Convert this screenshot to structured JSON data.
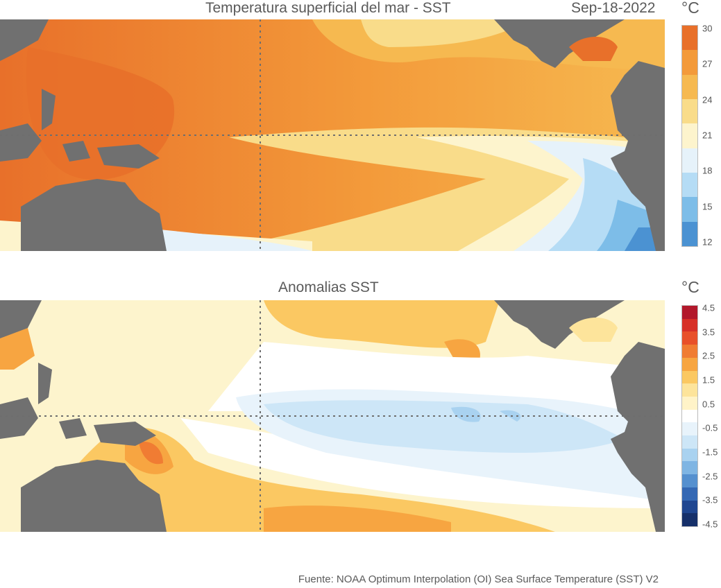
{
  "top_panel": {
    "title": "Temperatura superficial del mar - SST",
    "date": "Sep-18-2022",
    "unit": "°C",
    "colorbar_ticks": [
      "30",
      "27",
      "24",
      "21",
      "18",
      "15",
      "12"
    ],
    "colorbar_colors": [
      "#e8702a",
      "#f39a3a",
      "#f6b950",
      "#f9dc8a",
      "#fdf4cd",
      "#e6f2fa",
      "#b5dcf5",
      "#7dbde8",
      "#4b92d2"
    ]
  },
  "bottom_panel": {
    "title": "Anomalias SST",
    "unit": "°C",
    "colorbar_ticks": [
      "4.5",
      "3.5",
      "2.5",
      "1.5",
      "0.5",
      "-0.5",
      "-1.5",
      "-2.5",
      "-3.5",
      "-4.5"
    ],
    "colorbar_colors": [
      "#b2182b",
      "#d73027",
      "#e8502a",
      "#f07c33",
      "#f7a541",
      "#fbc862",
      "#fde49b",
      "#fff3c8",
      "#ffffff",
      "#e8f3fb",
      "#cde6f7",
      "#a9d2f0",
      "#7fb5e3",
      "#5590cf",
      "#3468b4",
      "#1f4690",
      "#16306a"
    ]
  },
  "land_color": "#707070",
  "gridline_color": "#6e6e6e",
  "source": "Fuente: NOAA Optimum Interpolation (OI) Sea Surface Temperature (SST) V2"
}
